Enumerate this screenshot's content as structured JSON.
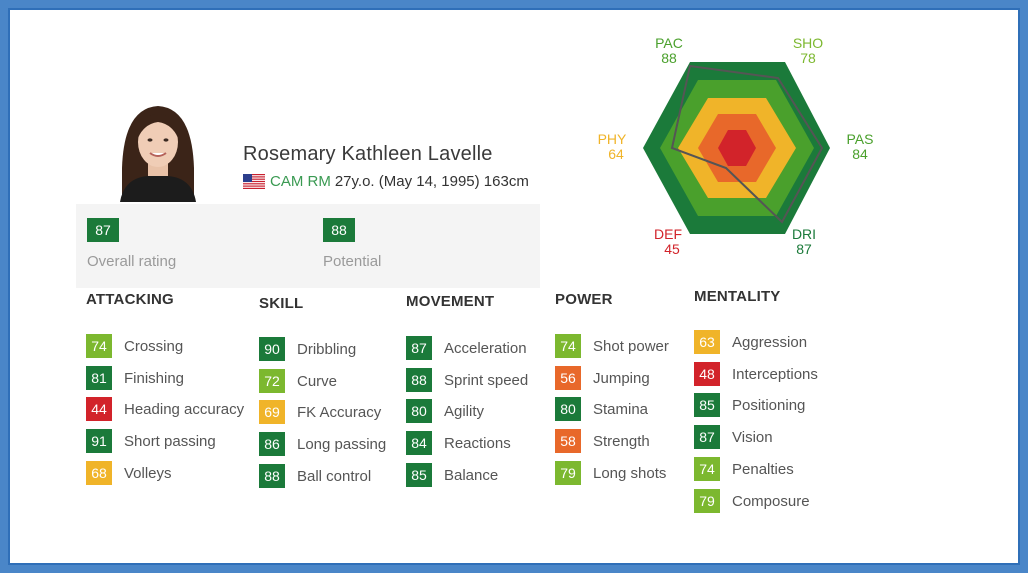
{
  "player": {
    "name": "Rosemary Kathleen Lavelle",
    "positions": "CAM RM",
    "details": "27y.o. (May 14, 1995) 163cm",
    "flag_icon": "us-flag-icon"
  },
  "ratings": {
    "overall": {
      "value": "87",
      "label": "Overall rating"
    },
    "potential": {
      "value": "88",
      "label": "Potential"
    }
  },
  "colors": {
    "dark_green": "#1b7a3a",
    "green": "#4aa02c",
    "light_green": "#7cb82f",
    "yellow": "#f0b429",
    "orange": "#e8682a",
    "red": "#d2232a"
  },
  "radar": {
    "pac": {
      "label": "PAC",
      "value": "88"
    },
    "sho": {
      "label": "SHO",
      "value": "78"
    },
    "pas": {
      "label": "PAS",
      "value": "84"
    },
    "dri": {
      "label": "DRI",
      "value": "87"
    },
    "def": {
      "label": "DEF",
      "value": "45"
    },
    "phy": {
      "label": "PHY",
      "value": "64"
    }
  },
  "categories": [
    {
      "title": "ATTACKING",
      "items": [
        {
          "value": "74",
          "label": "Crossing"
        },
        {
          "value": "81",
          "label": "Finishing"
        },
        {
          "value": "44",
          "label": "Heading accuracy"
        },
        {
          "value": "91",
          "label": "Short passing"
        },
        {
          "value": "68",
          "label": "Volleys"
        }
      ]
    },
    {
      "title": "SKILL",
      "items": [
        {
          "value": "90",
          "label": "Dribbling"
        },
        {
          "value": "72",
          "label": "Curve"
        },
        {
          "value": "69",
          "label": "FK Accuracy"
        },
        {
          "value": "86",
          "label": "Long passing"
        },
        {
          "value": "88",
          "label": "Ball control"
        }
      ]
    },
    {
      "title": "MOVEMENT",
      "items": [
        {
          "value": "87",
          "label": "Acceleration"
        },
        {
          "value": "88",
          "label": "Sprint speed"
        },
        {
          "value": "80",
          "label": "Agility"
        },
        {
          "value": "84",
          "label": "Reactions"
        },
        {
          "value": "85",
          "label": "Balance"
        }
      ]
    },
    {
      "title": "POWER",
      "items": [
        {
          "value": "74",
          "label": "Shot power"
        },
        {
          "value": "56",
          "label": "Jumping"
        },
        {
          "value": "80",
          "label": "Stamina"
        },
        {
          "value": "58",
          "label": "Strength"
        },
        {
          "value": "79",
          "label": "Long shots"
        }
      ]
    },
    {
      "title": "MENTALITY",
      "items": [
        {
          "value": "63",
          "label": "Aggression"
        },
        {
          "value": "48",
          "label": "Interceptions"
        },
        {
          "value": "85",
          "label": "Positioning"
        },
        {
          "value": "87",
          "label": "Vision"
        },
        {
          "value": "74",
          "label": "Penalties"
        },
        {
          "value": "79",
          "label": "Composure"
        }
      ]
    }
  ]
}
